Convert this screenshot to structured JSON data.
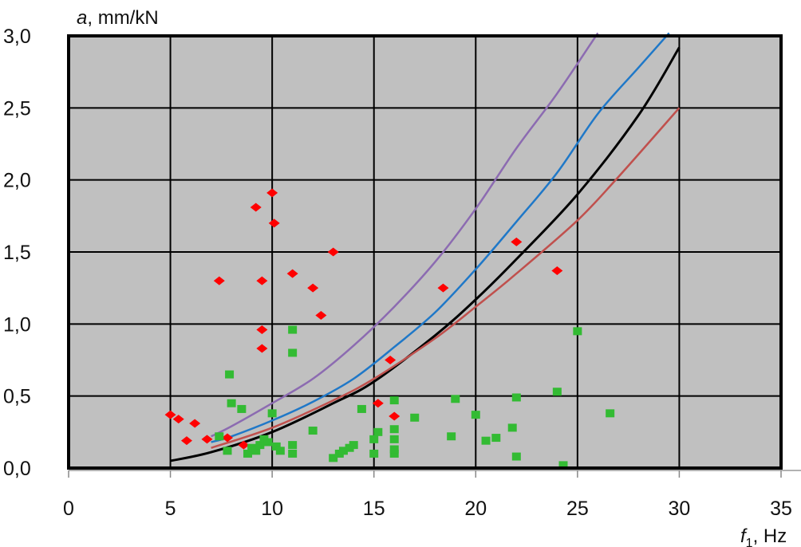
{
  "chart_data": {
    "type": "scatter",
    "title": "",
    "xlabel": {
      "symbol": "f",
      "subscript": "1",
      "unit": ", Hz"
    },
    "ylabel": {
      "symbol": "a",
      "unit": ", mm/kN"
    },
    "xlim": [
      0,
      35
    ],
    "ylim": [
      0,
      3
    ],
    "x_ticks": [
      0,
      5,
      10,
      15,
      20,
      25,
      30,
      35
    ],
    "x_tick_labels": [
      "0",
      "5",
      "10",
      "15",
      "20",
      "25",
      "30",
      "35"
    ],
    "y_ticks": [
      0,
      0.5,
      1,
      1.5,
      2,
      2.5,
      3
    ],
    "y_tick_labels": [
      "0,0",
      "0,5",
      "1,0",
      "1,5",
      "2,0",
      "2,5",
      "3,0"
    ],
    "grid": true,
    "colors": {
      "plot_background": "#c0c0c0",
      "red_points": "#ff0000",
      "green_points": "#33bb33",
      "purple_curve": "#8c6bb1",
      "blue_curve": "#1f78c8",
      "black_curve": "#000000",
      "red_curve": "#c0504d"
    },
    "series": [
      {
        "kind": "points",
        "marker": "diamond",
        "color_key": "red_points",
        "x": [
          5,
          5.4,
          6.2,
          5.8,
          6.8,
          7.4,
          7.8,
          8.6,
          9.2,
          9.5,
          9.5,
          9.5,
          10,
          10.1,
          11,
          12,
          12.4,
          13,
          15.2,
          15.8,
          16,
          18.4,
          22,
          24
        ],
        "y": [
          0.37,
          0.34,
          0.31,
          0.19,
          0.2,
          1.3,
          0.21,
          0.16,
          1.81,
          1.3,
          0.96,
          0.83,
          1.91,
          1.7,
          1.35,
          1.25,
          1.06,
          1.5,
          0.45,
          0.75,
          0.36,
          1.25,
          1.57,
          1.37
        ]
      },
      {
        "kind": "points",
        "marker": "square",
        "color_key": "green_points",
        "x": [
          7.4,
          7.8,
          7.9,
          8,
          8.5,
          8.8,
          9,
          9.2,
          9.4,
          9.6,
          9.8,
          10,
          10.2,
          10.4,
          11,
          11,
          11,
          11,
          12,
          13,
          13.3,
          13.5,
          13.8,
          14,
          14.4,
          15,
          15,
          15.2,
          16,
          16,
          16,
          16,
          16,
          17,
          18.8,
          19,
          20,
          20.5,
          21,
          21.8,
          22,
          22,
          24,
          24.3,
          25,
          26.6
        ],
        "y": [
          0.22,
          0.12,
          0.65,
          0.45,
          0.41,
          0.1,
          0.14,
          0.12,
          0.16,
          0.2,
          0.18,
          0.38,
          0.15,
          0.12,
          0.96,
          0.8,
          0.1,
          0.16,
          0.26,
          0.07,
          0.1,
          0.12,
          0.14,
          0.16,
          0.41,
          0.1,
          0.2,
          0.25,
          0.47,
          0.27,
          0.2,
          0.1,
          0.13,
          0.35,
          0.22,
          0.48,
          0.37,
          0.19,
          0.21,
          0.28,
          0.49,
          0.08,
          0.53,
          0.02,
          0.95,
          0.38
        ]
      },
      {
        "kind": "line",
        "color_key": "purple_curve",
        "x": [
          7,
          8,
          10,
          12,
          14,
          16,
          18,
          20,
          22,
          24,
          26
        ],
        "y": [
          0.22,
          0.29,
          0.45,
          0.62,
          0.85,
          1.12,
          1.43,
          1.8,
          2.22,
          2.6,
          3.02
        ]
      },
      {
        "kind": "line",
        "color_key": "blue_curve",
        "x": [
          7,
          8,
          10,
          12,
          14,
          16,
          18,
          20,
          22,
          24,
          26,
          28,
          29.5
        ],
        "y": [
          0.18,
          0.22,
          0.33,
          0.46,
          0.62,
          0.84,
          1.08,
          1.38,
          1.71,
          2.05,
          2.46,
          2.78,
          3.02
        ]
      },
      {
        "kind": "line",
        "color_key": "black_curve",
        "x": [
          5,
          7,
          10,
          13,
          15,
          18,
          20,
          22,
          25,
          28,
          30
        ],
        "y": [
          0.05,
          0.11,
          0.25,
          0.45,
          0.6,
          0.92,
          1.17,
          1.45,
          1.9,
          2.45,
          2.92
        ]
      },
      {
        "kind": "line",
        "color_key": "red_curve",
        "x": [
          7,
          10,
          13,
          15,
          18,
          20,
          22,
          25,
          27,
          30
        ],
        "y": [
          0.14,
          0.28,
          0.47,
          0.62,
          0.9,
          1.12,
          1.35,
          1.72,
          2.02,
          2.5
        ]
      }
    ]
  }
}
